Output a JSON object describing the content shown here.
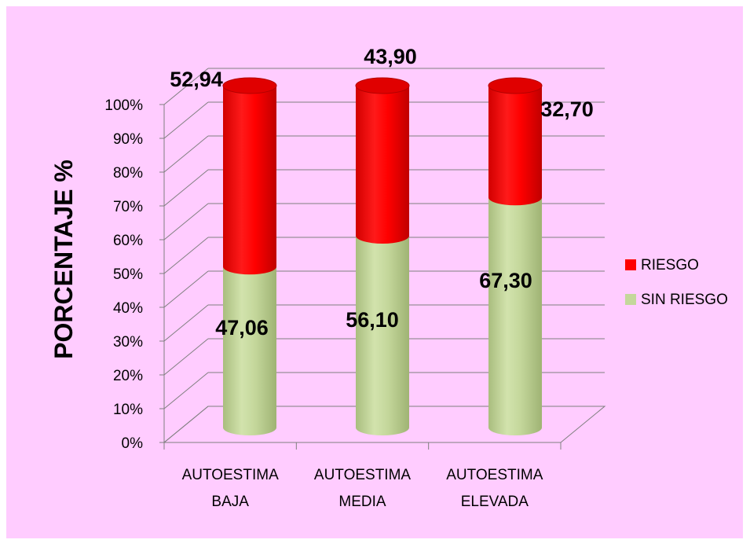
{
  "chart_data": {
    "type": "bar",
    "stacked": true,
    "style": "3d-cylinder",
    "categories": [
      [
        "AUTOESTIMA",
        "BAJA"
      ],
      [
        "AUTOESTIMA",
        "MEDIA"
      ],
      [
        "AUTOESTIMA",
        "ELEVADA"
      ]
    ],
    "series": [
      {
        "name": "SIN RIESGO",
        "color": "#c4d79b",
        "values": [
          47.06,
          56.1,
          67.3
        ],
        "labels": [
          "47,06",
          "56,10",
          "67,30"
        ]
      },
      {
        "name": "RIESGO",
        "color": "#ff0000",
        "values": [
          52.94,
          43.9,
          32.7
        ],
        "labels": [
          "52,94",
          "43,90",
          "32,70"
        ]
      }
    ],
    "ylabel": "PORCENTAJE %",
    "ylim": [
      0,
      100
    ],
    "yticks": [
      "0%",
      "10%",
      "20%",
      "30%",
      "40%",
      "50%",
      "60%",
      "70%",
      "80%",
      "90%",
      "100%"
    ],
    "grid": true,
    "legend": "right",
    "background": "#ffccff"
  }
}
